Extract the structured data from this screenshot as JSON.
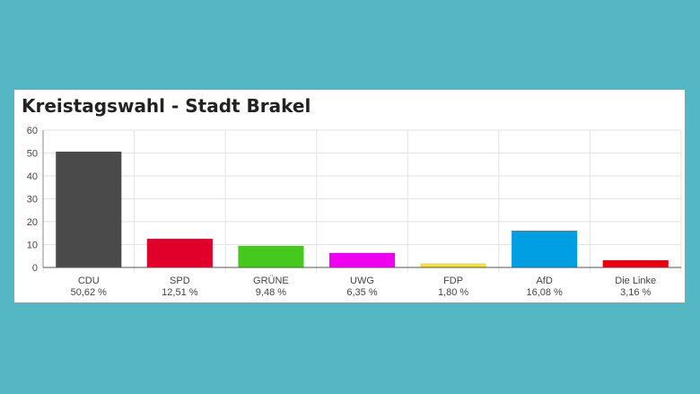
{
  "chart_data": {
    "type": "bar",
    "title": "Kreistagswahl - Stadt Brakel",
    "xlabel": "",
    "ylabel": "",
    "ylim": [
      0,
      60
    ],
    "yticks": [
      0,
      10,
      20,
      30,
      40,
      50,
      60
    ],
    "grid": true,
    "legend": "none",
    "categories": [
      "CDU",
      "SPD",
      "GRÜNE",
      "UWG",
      "FDP",
      "AfD",
      "Die Linke"
    ],
    "values": [
      50.62,
      12.51,
      9.48,
      6.35,
      1.8,
      16.08,
      3.16
    ],
    "value_labels": [
      "50,62 %",
      "12,51 %",
      "9,48 %",
      "6,35 %",
      "1,80 %",
      "16,08 %",
      "3,16 %"
    ],
    "colors": [
      "#4a4a4a",
      "#e0002a",
      "#46c81e",
      "#f000f0",
      "#f0e040",
      "#009fe3",
      "#e8000f"
    ]
  }
}
